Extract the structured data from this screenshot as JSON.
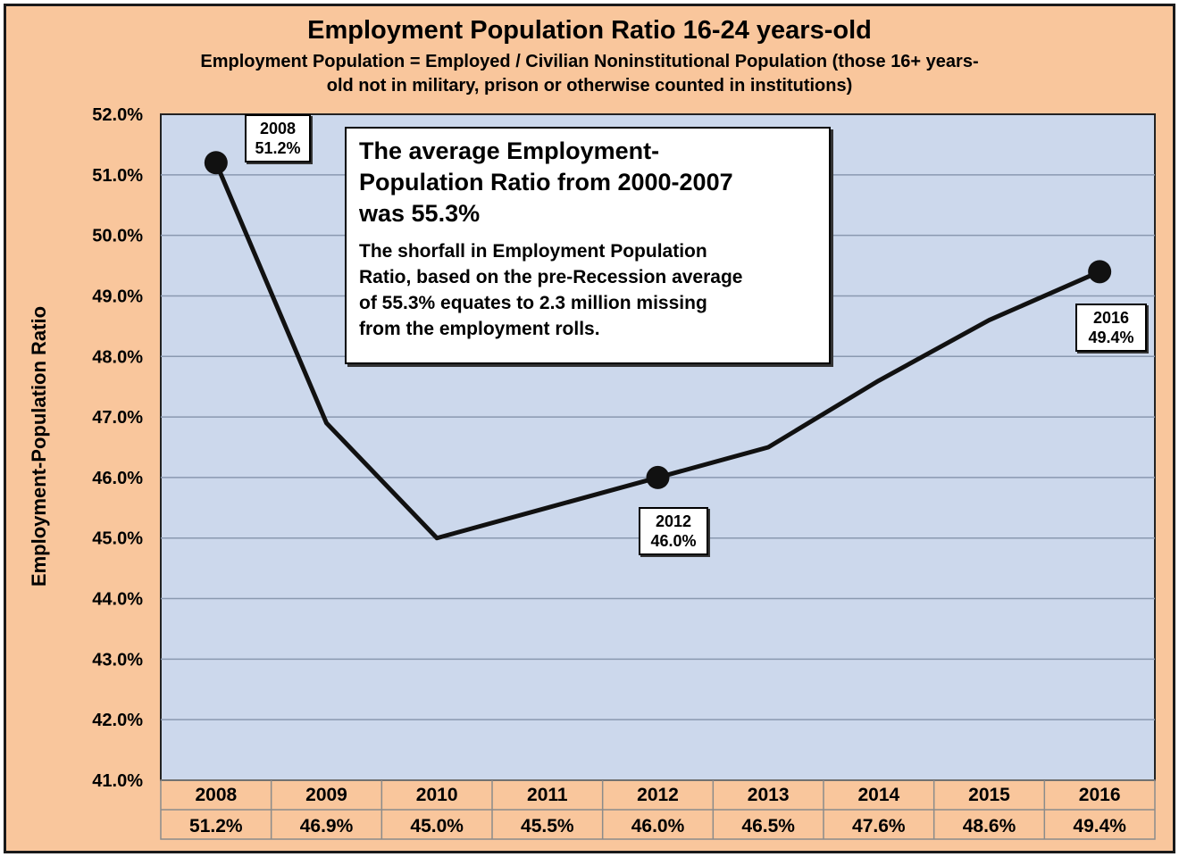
{
  "chart_data": {
    "type": "line",
    "title": "Employment Population Ratio 16-24 years-old",
    "subtitle": "Employment Population = Employed  / Civilian Noninstitutional Population (those 16+ years-old not in military, prison or otherwise counted in institutions)",
    "subtitle_lines": [
      "Employment Population = Employed  / Civilian Noninstitutional Population (those 16+ years-",
      "old not in military, prison or otherwise counted in institutions)"
    ],
    "ylabel": "Employment-Population  Ratio",
    "xlabel": "",
    "ylim": [
      41.0,
      52.0
    ],
    "yticks": [
      41.0,
      42.0,
      43.0,
      44.0,
      45.0,
      46.0,
      47.0,
      48.0,
      49.0,
      50.0,
      51.0,
      52.0
    ],
    "ytick_labels": [
      "41.0%",
      "42.0%",
      "43.0%",
      "44.0%",
      "45.0%",
      "46.0%",
      "47.0%",
      "48.0%",
      "49.0%",
      "50.0%",
      "51.0%",
      "52.0%"
    ],
    "grid": true,
    "x": [
      "2008",
      "2009",
      "2010",
      "2011",
      "2012",
      "2013",
      "2014",
      "2015",
      "2016"
    ],
    "values": [
      51.2,
      46.9,
      45.0,
      45.5,
      46.0,
      46.5,
      47.6,
      48.6,
      49.4
    ],
    "value_labels": [
      "51.2%",
      "46.9%",
      "45.0%",
      "45.5%",
      "46.0%",
      "46.5%",
      "47.6%",
      "48.6%",
      "49.4%"
    ],
    "highlighted_points": [
      {
        "year": "2008",
        "value": 51.2,
        "label": "51.2%"
      },
      {
        "year": "2012",
        "value": 46.0,
        "label": "46.0%"
      },
      {
        "year": "2016",
        "value": 49.4,
        "label": "49.4%"
      }
    ],
    "annotation": {
      "headline": "The average Employment-Population Ratio from 2000-2007 was 55.3%",
      "headline_lines": [
        "The average Employment-",
        "Population Ratio from 2000-2007",
        "was 55.3%"
      ],
      "body": "The shorfall in Employment Population Ratio, based on the pre-Recession average of 55.3% equates to 2.3 million missing from the employment rolls.",
      "body_lines": [
        "The shorfall in Employment Population",
        "Ratio, based on the pre-Recession average",
        "of 55.3% equates to 2.3 million missing",
        "from the employment rolls."
      ]
    },
    "colors": {
      "background": "#f9c69c",
      "plot_area": "#ccd8ec",
      "grid": "#8a99b0",
      "line": "#111111"
    }
  }
}
